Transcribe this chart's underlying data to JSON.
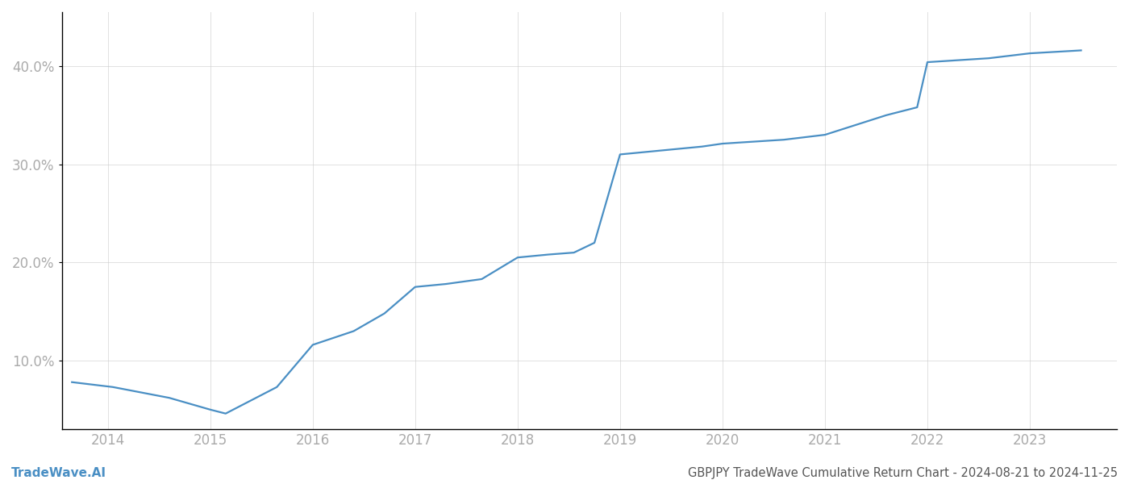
{
  "title": "GBPJPY TradeWave Cumulative Return Chart - 2024-08-21 to 2024-11-25",
  "watermark": "TradeWave.AI",
  "line_color": "#4a8fc4",
  "background_color": "#ffffff",
  "grid_color": "#cccccc",
  "x_years": [
    2014,
    2015,
    2016,
    2017,
    2018,
    2019,
    2020,
    2021,
    2022,
    2023
  ],
  "data_x": [
    2013.65,
    2014.05,
    2014.6,
    2015.0,
    2015.15,
    2015.65,
    2016.0,
    2016.4,
    2016.7,
    2017.0,
    2017.3,
    2017.65,
    2018.0,
    2018.3,
    2018.55,
    2018.75,
    2019.0,
    2019.2,
    2019.5,
    2019.8,
    2020.0,
    2020.3,
    2020.6,
    2021.0,
    2021.3,
    2021.6,
    2021.9,
    2022.0,
    2022.3,
    2022.6,
    2023.0,
    2023.5
  ],
  "data_y": [
    0.078,
    0.073,
    0.062,
    0.05,
    0.046,
    0.073,
    0.116,
    0.13,
    0.148,
    0.175,
    0.178,
    0.183,
    0.205,
    0.208,
    0.21,
    0.22,
    0.31,
    0.312,
    0.315,
    0.318,
    0.321,
    0.323,
    0.325,
    0.33,
    0.34,
    0.35,
    0.358,
    0.404,
    0.406,
    0.408,
    0.413,
    0.416
  ],
  "ylim_min": 0.03,
  "ylim_max": 0.455,
  "yticks": [
    0.1,
    0.2,
    0.3,
    0.4
  ],
  "xlim_min": 2013.55,
  "xlim_max": 2023.85,
  "title_fontsize": 10.5,
  "watermark_fontsize": 11,
  "tick_label_color": "#aaaaaa",
  "spine_color": "#000000",
  "grid_alpha": 0.6,
  "line_width": 1.6,
  "title_color": "#555555",
  "watermark_color": "#4a8fc4",
  "tick_fontsize": 12
}
